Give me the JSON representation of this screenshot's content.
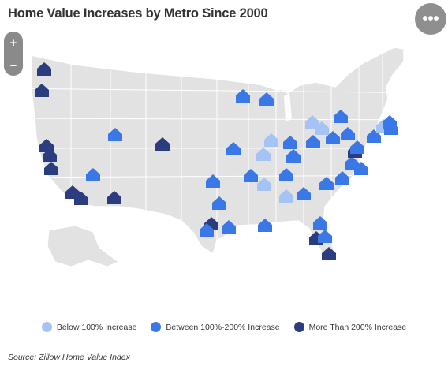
{
  "title": "Home Value Increases by Metro Since 2000",
  "controls": {
    "more_icon": "more-horizontal-icon",
    "more_label": "•••",
    "zoom_in_label": "+",
    "zoom_out_label": "−"
  },
  "legend": [
    {
      "label": "Below 100% Increase",
      "color": "#a6c3f5"
    },
    {
      "label": "Between 100%-200% Increase",
      "color": "#3b78e7"
    },
    {
      "label": "More Than 200% Increase",
      "color": "#2b3c7f"
    }
  ],
  "colors": {
    "land": "#e2e2e2",
    "state_border": "#ffffff",
    "low": "#a6c3f5",
    "mid": "#3b78e7",
    "high": "#2b3c7f"
  },
  "source": "Source: Zillow Home Value Index"
}
